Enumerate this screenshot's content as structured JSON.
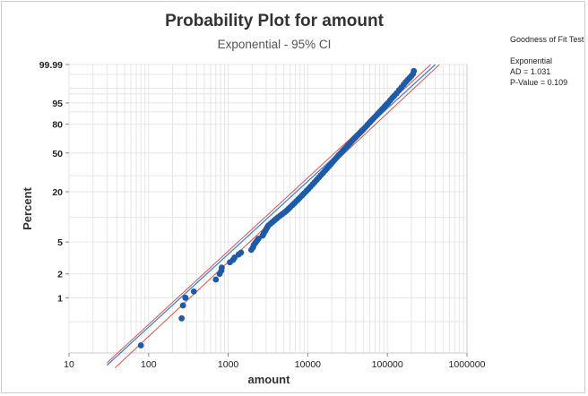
{
  "chart_data": {
    "type": "scatter",
    "title": "Probability Plot for amount",
    "subtitle": "Exponential - 95% CI",
    "xlabel": "amount",
    "ylabel": "Percent",
    "x_scale": "log",
    "xlim": [
      10,
      1000000
    ],
    "x_ticks": [
      "10",
      "100",
      "1000",
      "10000",
      "100000",
      "1000000"
    ],
    "y_scale": "exponential-probability",
    "ylim_percent": [
      0.2,
      99.99
    ],
    "y_ticks": [
      "99.99",
      "95",
      "80",
      "50",
      "20",
      "5",
      "2",
      "1"
    ],
    "grid": true,
    "colors": {
      "points": "#1f5aa6",
      "fit_line": "#3b7dd8",
      "ci_lines": "#d9534f",
      "grid": "#e6e6e6"
    },
    "fit_line": {
      "x": [
        30,
        400000
      ],
      "percent": [
        0.14,
        99.99
      ]
    },
    "ci_upper": {
      "x": [
        30,
        350000
      ],
      "percent": [
        0.15,
        99.99
      ]
    },
    "ci_lower": {
      "x": [
        38,
        450000
      ],
      "percent": [
        0.13,
        99.99
      ]
    },
    "points": {
      "x": [
        80,
        260,
        270,
        290,
        290,
        370,
        700,
        780,
        820,
        830,
        1050,
        1150,
        1200,
        1350,
        1450,
        1950,
        2050,
        2100,
        2200,
        2300,
        2400,
        2700,
        2800,
        2900,
        3000,
        3100,
        3200,
        3400,
        3600,
        3800,
        4000,
        4200,
        4500,
        4800,
        5100,
        5400,
        5700,
        6000,
        6400,
        6800,
        7200,
        7600,
        8000,
        8500,
        9000,
        9600,
        10200,
        10800,
        11500,
        12200,
        13000,
        13800,
        14600,
        15500,
        16500,
        17500,
        18500,
        19500,
        20500,
        21500,
        22500,
        23500,
        24500,
        26000,
        27500,
        29000,
        30500,
        32000,
        34000,
        36000,
        38000,
        40000,
        42000,
        44000,
        46000,
        48000,
        50000,
        53000,
        56000,
        59000,
        62000,
        65000,
        68000,
        72000,
        76000,
        80000,
        84000,
        88000,
        92000,
        97000,
        102000,
        108000,
        115000,
        122000,
        130000,
        140000,
        150000,
        160000,
        170000,
        180000,
        190000,
        200000,
        210000,
        215000
      ],
      "percent": [
        0.25,
        0.55,
        0.8,
        1.0,
        1.0,
        1.2,
        1.7,
        2.0,
        2.2,
        2.4,
        2.8,
        3.0,
        3.2,
        3.5,
        3.7,
        4.0,
        4.3,
        4.6,
        4.9,
        5.2,
        5.5,
        6.0,
        6.4,
        6.8,
        7.2,
        7.6,
        8.0,
        8.4,
        8.8,
        9.2,
        9.6,
        10.0,
        10.5,
        11.0,
        11.5,
        12.0,
        12.6,
        13.2,
        14.0,
        14.8,
        15.6,
        16.4,
        17.2,
        18.2,
        19.2,
        20.4,
        21.6,
        22.8,
        24.2,
        25.6,
        27.2,
        28.8,
        30.4,
        32.0,
        34.0,
        35.8,
        37.6,
        39.4,
        41.2,
        43.0,
        44.6,
        46.2,
        47.8,
        50.0,
        52.2,
        54.2,
        56.2,
        58.0,
        60.4,
        62.6,
        64.8,
        66.8,
        68.6,
        70.4,
        72.0,
        73.6,
        75.0,
        77.2,
        79.2,
        81.0,
        82.8,
        84.2,
        85.6,
        87.2,
        88.8,
        90.0,
        91.2,
        92.2,
        93.2,
        94.2,
        95.0,
        96.0,
        96.9,
        97.5,
        98.1,
        98.7,
        99.1,
        99.4,
        99.6,
        99.72,
        99.8,
        99.86,
        99.91,
        99.95
      ]
    }
  },
  "goodness_of_fit": {
    "heading": "Goodness of Fit Test",
    "distribution": "Exponential",
    "ad": "AD = 1.031",
    "p_value": "P-Value = 0.109"
  }
}
